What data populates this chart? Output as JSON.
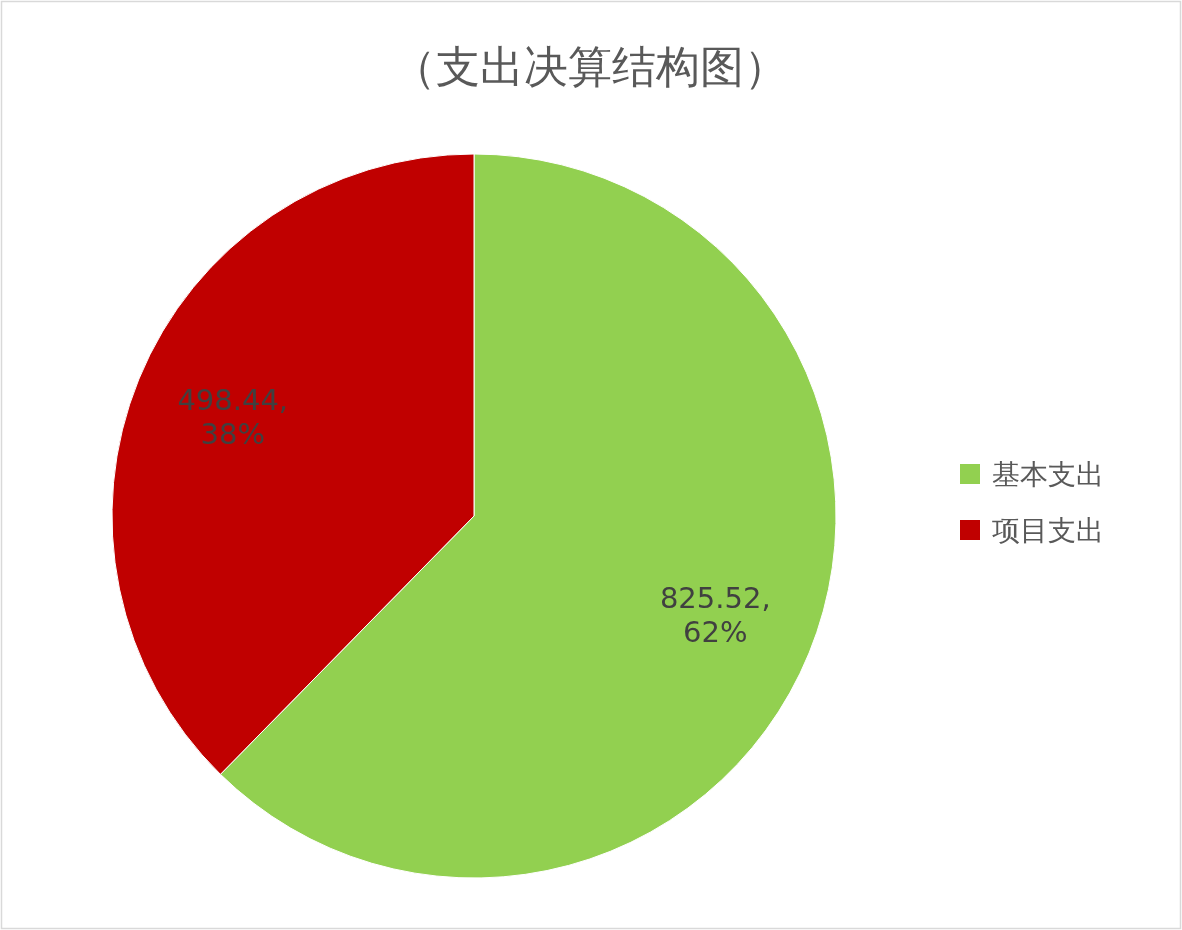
{
  "chart_data": {
    "type": "pie",
    "title": "（支出决算结构图）",
    "categories": [
      "基本支出",
      "项目支出"
    ],
    "values": [
      825.52,
      498.44
    ],
    "colors": [
      "#92d050",
      "#c00000"
    ],
    "value_labels": [
      "825.52, 62%",
      "498.44, 38%"
    ],
    "legend": "right"
  }
}
